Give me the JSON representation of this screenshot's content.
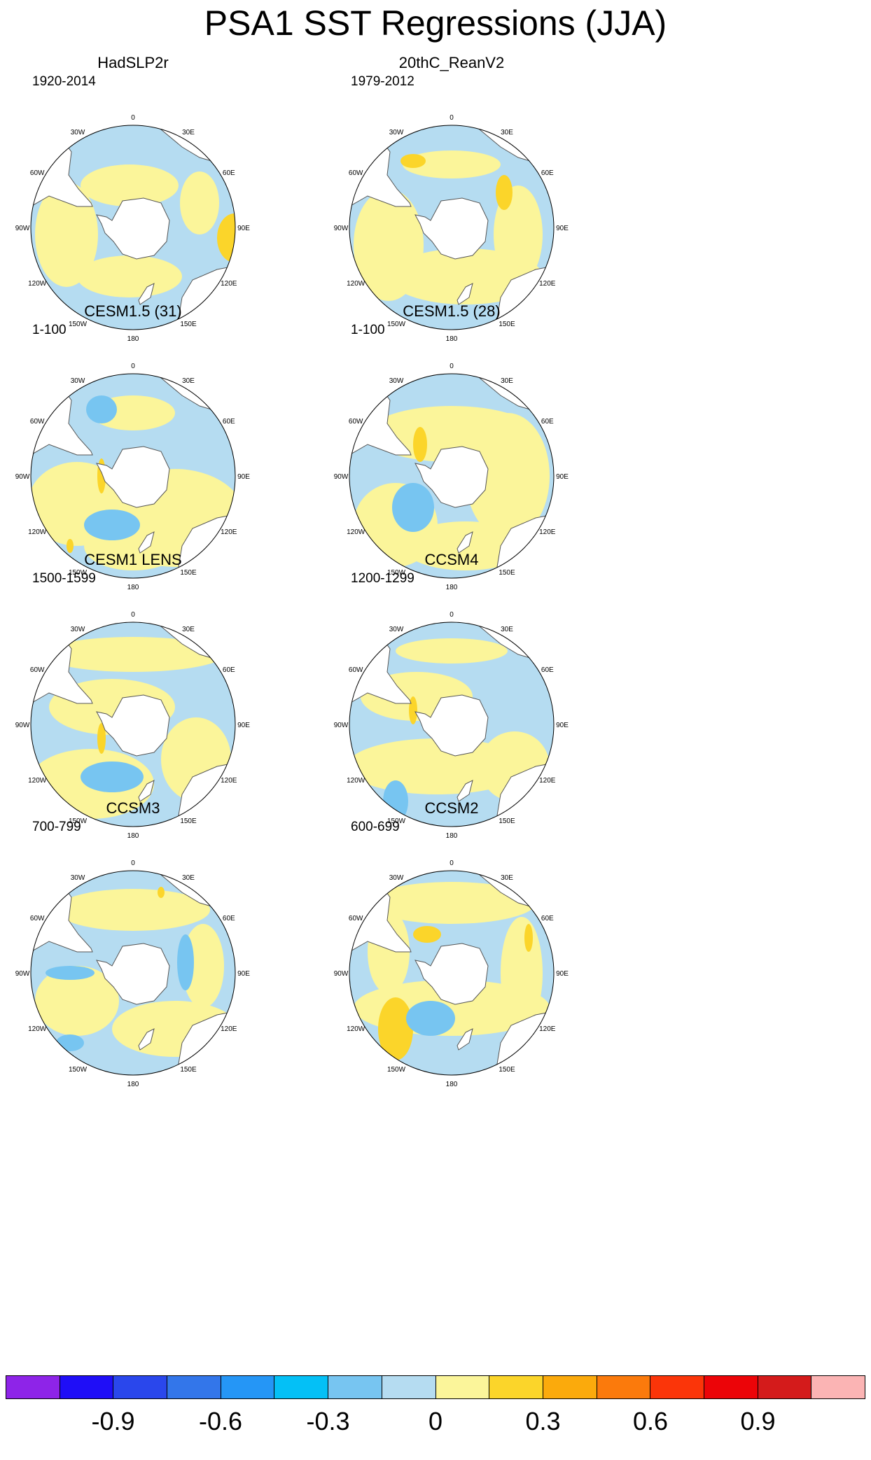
{
  "title": "PSA1 SST Regressions (JJA)",
  "lon_labels": [
    "0",
    "30E",
    "60E",
    "90E",
    "120E",
    "150E",
    "180",
    "150W",
    "120W",
    "90W",
    "60W",
    "30W"
  ],
  "colors": {
    "ocean_neutral_negative": "#b5dcf1",
    "ocean_neutral_positive": "#fbf59a",
    "land": "#ffffff",
    "coastline": "#555555",
    "moderate_negative": "#77c5f1",
    "strong_negative": "#2e9cf7",
    "moderate_positive": "#fbd52a",
    "strong_positive": "#fbaa0c"
  },
  "panels": [
    {
      "title": "HadSLP2r",
      "period": "1920-2014"
    },
    {
      "title": "20thC_ReanV2",
      "period": "1979-2012"
    },
    {
      "title": "CESM1.5 (31)",
      "period": "1-100"
    },
    {
      "title": "CESM1.5 (28)",
      "period": "1-100"
    },
    {
      "title": "CESM1 LENS",
      "period": "1500-1599"
    },
    {
      "title": "CCSM4",
      "period": "1200-1299"
    },
    {
      "title": "CCSM3",
      "period": "700-799"
    },
    {
      "title": "CCSM2",
      "period": "600-699"
    }
  ],
  "colorbar": {
    "colors": [
      "#8e24e8",
      "#1f0ef7",
      "#2a47ec",
      "#3376ea",
      "#2596f6",
      "#04c0f6",
      "#77c5f1",
      "#b5dcf1",
      "#fbf59a",
      "#fbd52a",
      "#fbaa0c",
      "#fb7a0c",
      "#fb3509",
      "#ec0408",
      "#d41b1b",
      "#fbb4b4"
    ],
    "labels": [
      "-0.9",
      "-0.6",
      "-0.3",
      "0",
      "0.3",
      "0.6",
      "0.9"
    ]
  }
}
